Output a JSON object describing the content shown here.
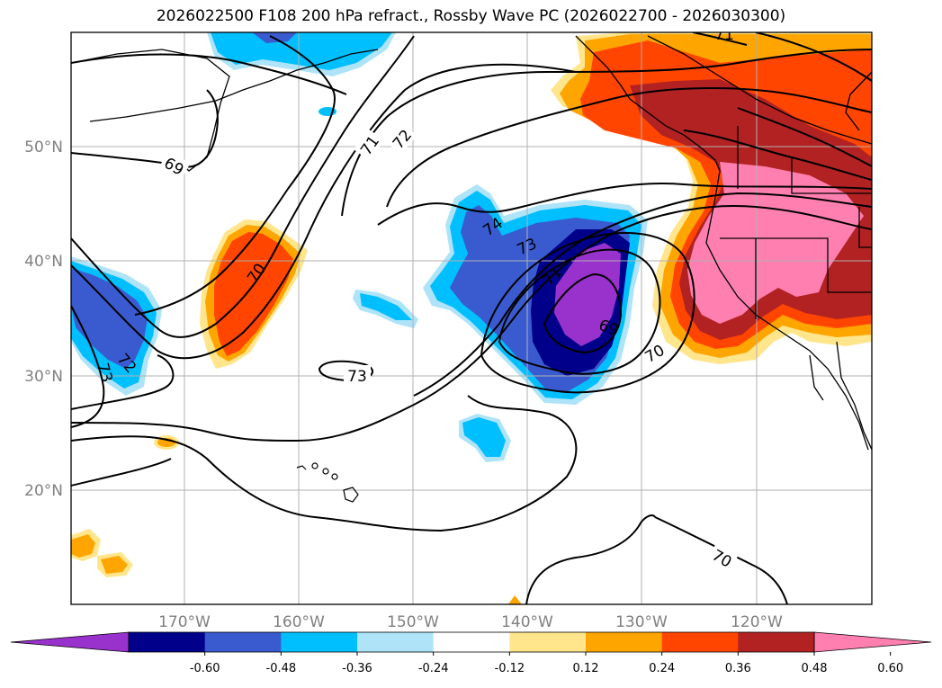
{
  "title": "2026022500 F108 200 hPa refract., Rossby Wave PC (2026022700 - 2026030300)",
  "map": {
    "lon_labels": [
      "170°W",
      "160°W",
      "150°W",
      "140°W",
      "130°W",
      "120°W"
    ],
    "lat_labels": [
      "50°N",
      "40°N",
      "30°N",
      "20°N"
    ],
    "gridlines": true
  },
  "contour_labels": [
    "71",
    "72",
    "69",
    "70",
    "74",
    "73",
    "71",
    "69",
    "70",
    "72",
    "73",
    "73",
    "70",
    "71"
  ],
  "colorbar": {
    "ticks": [
      "-0.60",
      "-0.48",
      "-0.36",
      "-0.24",
      "-0.12",
      "0.12",
      "0.24",
      "0.36",
      "0.48",
      "0.60"
    ],
    "colors": [
      "#9932CC",
      "#00008B",
      "#3A5BCF",
      "#00BFFF",
      "#AEE3F8",
      "#FFFFFF",
      "#FFE68C",
      "#FFA500",
      "#FF4500",
      "#B22222",
      "#FF80B0"
    ],
    "extend": "both"
  }
}
